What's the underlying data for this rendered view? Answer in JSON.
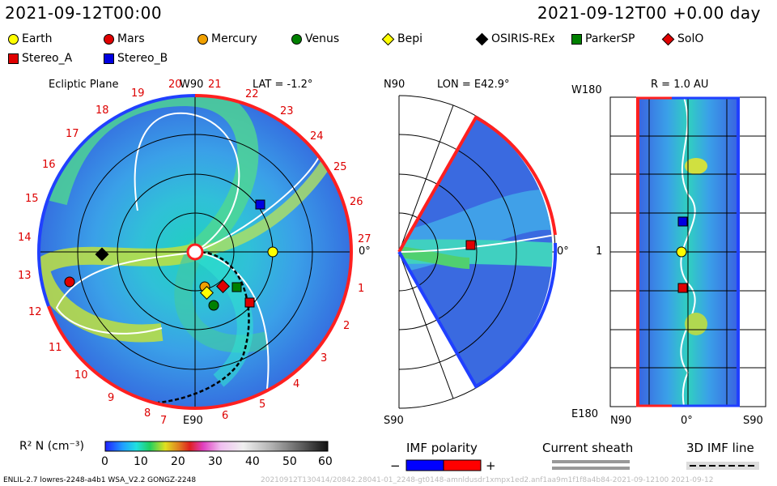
{
  "header": {
    "left_title": "2021-09-12T00:00",
    "right_title": "2021-09-12T00 +0.00 day"
  },
  "legend": [
    {
      "label": "Earth",
      "shape": "circle",
      "color": "#ffff00"
    },
    {
      "label": "Mars",
      "shape": "circle",
      "color": "#e00000"
    },
    {
      "label": "Mercury",
      "shape": "circle",
      "color": "#f0a000"
    },
    {
      "label": "Venus",
      "shape": "circle",
      "color": "#008000"
    },
    {
      "label": "Bepi",
      "shape": "diamond",
      "color": "#ffff00"
    },
    {
      "label": "OSIRIS-REx",
      "shape": "diamond",
      "color": "#000000"
    },
    {
      "label": "ParkerSP",
      "shape": "square",
      "color": "#008000"
    },
    {
      "label": "SolO",
      "shape": "diamond",
      "color": "#e00000"
    },
    {
      "label": "Stereo_A",
      "shape": "square",
      "color": "#e00000"
    },
    {
      "label": "Stereo_B",
      "shape": "square",
      "color": "#0000e0"
    }
  ],
  "panel_ecliptic": {
    "title": "Ecliptic Plane",
    "top_label": "W90",
    "lat_label": "LAT = -1.2°",
    "right_label": "0°",
    "bottom_label": "E90",
    "carrington_numbers": [
      "1",
      "2",
      "3",
      "4",
      "5",
      "6",
      "7",
      "8",
      "9",
      "10",
      "11",
      "12",
      "13",
      "14",
      "15",
      "16",
      "17",
      "18",
      "19",
      "20",
      "21",
      "22",
      "23",
      "24",
      "25",
      "26",
      "27"
    ]
  },
  "panel_meridional": {
    "top_label": "N90",
    "lon_label": "LON = E42.9°",
    "right_label": "0°",
    "bottom_label": "S90"
  },
  "panel_radial": {
    "r_label": "R = 1.0 AU",
    "top_label": "W180",
    "left_label": "1",
    "bottom_label": "E180",
    "x_left": "N90",
    "x_mid": "0°",
    "x_right": "S90"
  },
  "colorbar": {
    "label": "R² N (cm⁻³)",
    "ticks": [
      "0",
      "10",
      "20",
      "30",
      "40",
      "50",
      "60"
    ]
  },
  "imf": {
    "title": "IMF polarity",
    "minus": "−",
    "plus": "+"
  },
  "current_sheath": {
    "title": "Current sheath"
  },
  "imf_3d": {
    "title": "3D IMF line"
  },
  "footer": {
    "left": "ENLIL-2.7 lowres-2248-a4b1 WSA_V2.2 GONGZ-2248",
    "right": "20210912T130414/20842.28041-01_2248-gt0148-amnldusdr1xmpx1ed2.anf1aa9m1f1f8a4b84-2021-09-12100   2021-09-12"
  },
  "colors": {
    "polarity_negative": "#0000ff",
    "polarity_positive": "#ff0000"
  }
}
